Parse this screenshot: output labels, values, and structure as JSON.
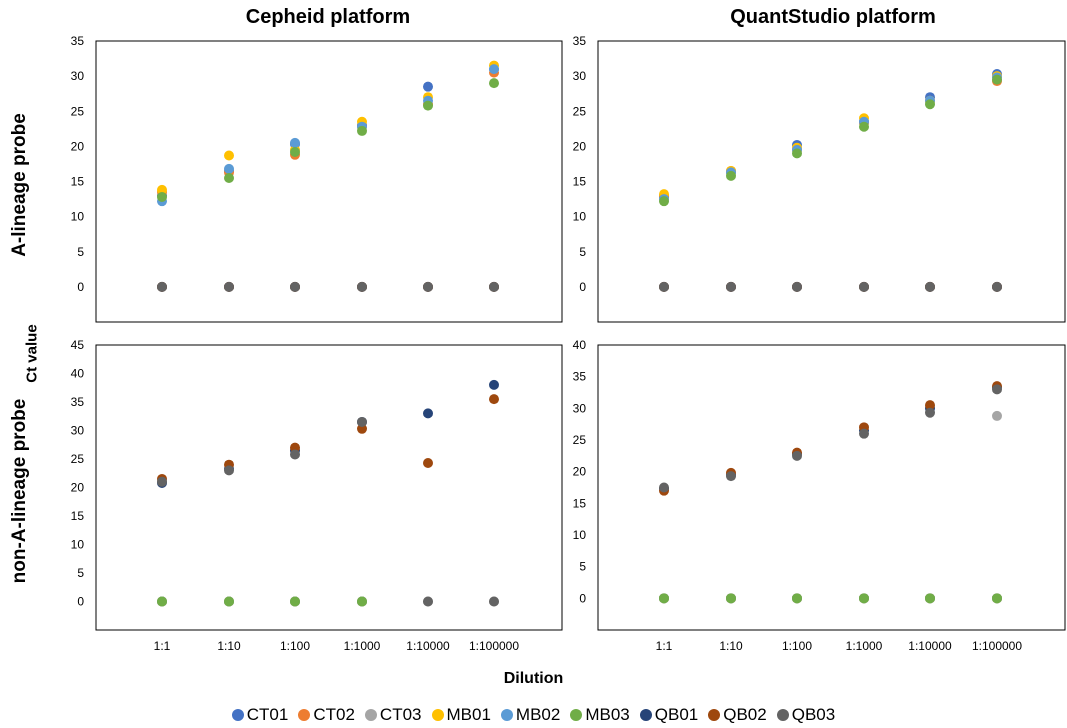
{
  "titles": {
    "col_left": "Cepheid platform",
    "col_right": "QuantStudio platform",
    "row_top": "A-lineage probe",
    "row_bottom": "non-A-lineage probe",
    "ylabel": "Ct value",
    "xlabel": "Dilution"
  },
  "colors": {
    "CT01": "#4472C4",
    "CT02": "#ED7D31",
    "CT03": "#A5A5A5",
    "MB01": "#FFC000",
    "MB02": "#5B9BD5",
    "MB03": "#70AD47",
    "QB01": "#264478",
    "QB02": "#9E480E",
    "QB03": "#636363"
  },
  "legend": [
    "CT01",
    "CT02",
    "CT03",
    "MB01",
    "MB02",
    "MB03",
    "QB01",
    "QB02",
    "QB03"
  ],
  "chart_data": [
    {
      "type": "scatter",
      "panel": "Cepheid platform / A-lineage probe",
      "categories": [
        "1:1",
        "1:10",
        "1:100",
        "1:1000",
        "1:10000",
        "1:100000"
      ],
      "yticks": [
        0,
        5,
        10,
        15,
        20,
        25,
        30,
        35
      ],
      "ylim": [
        -5,
        35
      ],
      "series": [
        {
          "name": "CT01",
          "values": [
            13,
            16.5,
            20.3,
            23,
            28.5,
            31
          ]
        },
        {
          "name": "CT02",
          "values": [
            13.5,
            16.3,
            18.8,
            22.8,
            26,
            30.5
          ]
        },
        {
          "name": "CT03",
          "values": [
            0,
            0,
            0,
            0,
            0,
            0
          ]
        },
        {
          "name": "MB01",
          "values": [
            13.8,
            18.7,
            19.5,
            23.5,
            27,
            31.5
          ]
        },
        {
          "name": "MB02",
          "values": [
            12.2,
            16.8,
            20.5,
            22.8,
            26.5,
            31
          ]
        },
        {
          "name": "MB03",
          "values": [
            12.8,
            15.5,
            19.2,
            22.2,
            25.8,
            29
          ]
        },
        {
          "name": "QB01",
          "values": [
            0,
            0,
            0,
            0,
            0,
            0
          ]
        },
        {
          "name": "QB02",
          "values": [
            0,
            0,
            0,
            0,
            0,
            0
          ]
        },
        {
          "name": "QB03",
          "values": [
            0,
            0,
            0,
            0,
            0,
            0
          ]
        }
      ]
    },
    {
      "type": "scatter",
      "panel": "QuantStudio platform / A-lineage probe",
      "categories": [
        "1:1",
        "1:10",
        "1:100",
        "1:1000",
        "1:10000",
        "1:100000"
      ],
      "yticks": [
        0,
        5,
        10,
        15,
        20,
        25,
        30,
        35
      ],
      "ylim": [
        -5,
        35
      ],
      "series": [
        {
          "name": "CT01",
          "values": [
            12.8,
            16.3,
            20.2,
            23.5,
            27,
            30.3
          ]
        },
        {
          "name": "CT02",
          "values": [
            12.9,
            16.5,
            19.5,
            23.3,
            26.5,
            29.3
          ]
        },
        {
          "name": "CT03",
          "values": [
            0,
            0,
            0,
            0,
            0,
            0
          ]
        },
        {
          "name": "MB01",
          "values": [
            13.2,
            16.5,
            19.8,
            24,
            26.5,
            30
          ]
        },
        {
          "name": "MB02",
          "values": [
            12.5,
            16.3,
            19.5,
            23.5,
            26.5,
            29.8
          ]
        },
        {
          "name": "MB03",
          "values": [
            12.2,
            15.8,
            19,
            22.8,
            26,
            29.5
          ]
        },
        {
          "name": "QB01",
          "values": [
            0,
            0,
            0,
            0,
            0,
            0
          ]
        },
        {
          "name": "QB02",
          "values": [
            0,
            0,
            0,
            0,
            0,
            0
          ]
        },
        {
          "name": "QB03",
          "values": [
            0,
            0,
            0,
            0,
            0,
            0
          ]
        }
      ]
    },
    {
      "type": "scatter",
      "panel": "Cepheid platform / non-A-lineage probe",
      "categories": [
        "1:1",
        "1:10",
        "1:100",
        "1:1000",
        "1:10000",
        "1:100000"
      ],
      "yticks": [
        0,
        5,
        10,
        15,
        20,
        25,
        30,
        35,
        40,
        45
      ],
      "ylim": [
        -5,
        45
      ],
      "series": [
        {
          "name": "CT01",
          "values": [
            0,
            0,
            0,
            0,
            null,
            null
          ]
        },
        {
          "name": "CT02",
          "values": [
            0,
            0,
            0,
            0,
            null,
            null
          ]
        },
        {
          "name": "CT03",
          "values": [
            0,
            0,
            0,
            0,
            0,
            0
          ]
        },
        {
          "name": "MB01",
          "values": [
            0,
            0,
            0,
            0,
            null,
            null
          ]
        },
        {
          "name": "MB02",
          "values": [
            0,
            0,
            0,
            0,
            null,
            null
          ]
        },
        {
          "name": "MB03",
          "values": [
            0,
            0,
            0,
            0,
            null,
            null
          ]
        },
        {
          "name": "QB01",
          "values": [
            20.8,
            23.3,
            26.5,
            31.5,
            33,
            38
          ]
        },
        {
          "name": "QB02",
          "values": [
            21.5,
            24,
            27,
            30.3,
            24.3,
            35.5
          ]
        },
        {
          "name": "QB03",
          "values": [
            21,
            23,
            25.8,
            31.5,
            0,
            0
          ]
        }
      ]
    },
    {
      "type": "scatter",
      "panel": "QuantStudio platform / non-A-lineage probe",
      "categories": [
        "1:1",
        "1:10",
        "1:100",
        "1:1000",
        "1:10000",
        "1:100000"
      ],
      "yticks": [
        0,
        5,
        10,
        15,
        20,
        25,
        30,
        35,
        40
      ],
      "ylim": [
        -5,
        40
      ],
      "series": [
        {
          "name": "CT01",
          "values": [
            0,
            0,
            0,
            0,
            0,
            0
          ]
        },
        {
          "name": "CT02",
          "values": [
            0,
            0,
            0,
            0,
            0,
            0
          ]
        },
        {
          "name": "CT03",
          "values": [
            null,
            null,
            null,
            null,
            null,
            28.8
          ]
        },
        {
          "name": "MB01",
          "values": [
            0,
            0,
            0,
            0,
            0,
            0
          ]
        },
        {
          "name": "MB02",
          "values": [
            0,
            0,
            0,
            0,
            0,
            0
          ]
        },
        {
          "name": "MB03",
          "values": [
            0,
            0,
            0,
            0,
            0,
            0
          ]
        },
        {
          "name": "QB01",
          "values": [
            17.3,
            19.5,
            22.8,
            26.5,
            30,
            33.3
          ]
        },
        {
          "name": "QB02",
          "values": [
            17,
            19.8,
            23,
            27,
            30.5,
            33.5
          ]
        },
        {
          "name": "QB03",
          "values": [
            17.5,
            19.3,
            22.5,
            26,
            29.3,
            33
          ]
        }
      ]
    }
  ]
}
